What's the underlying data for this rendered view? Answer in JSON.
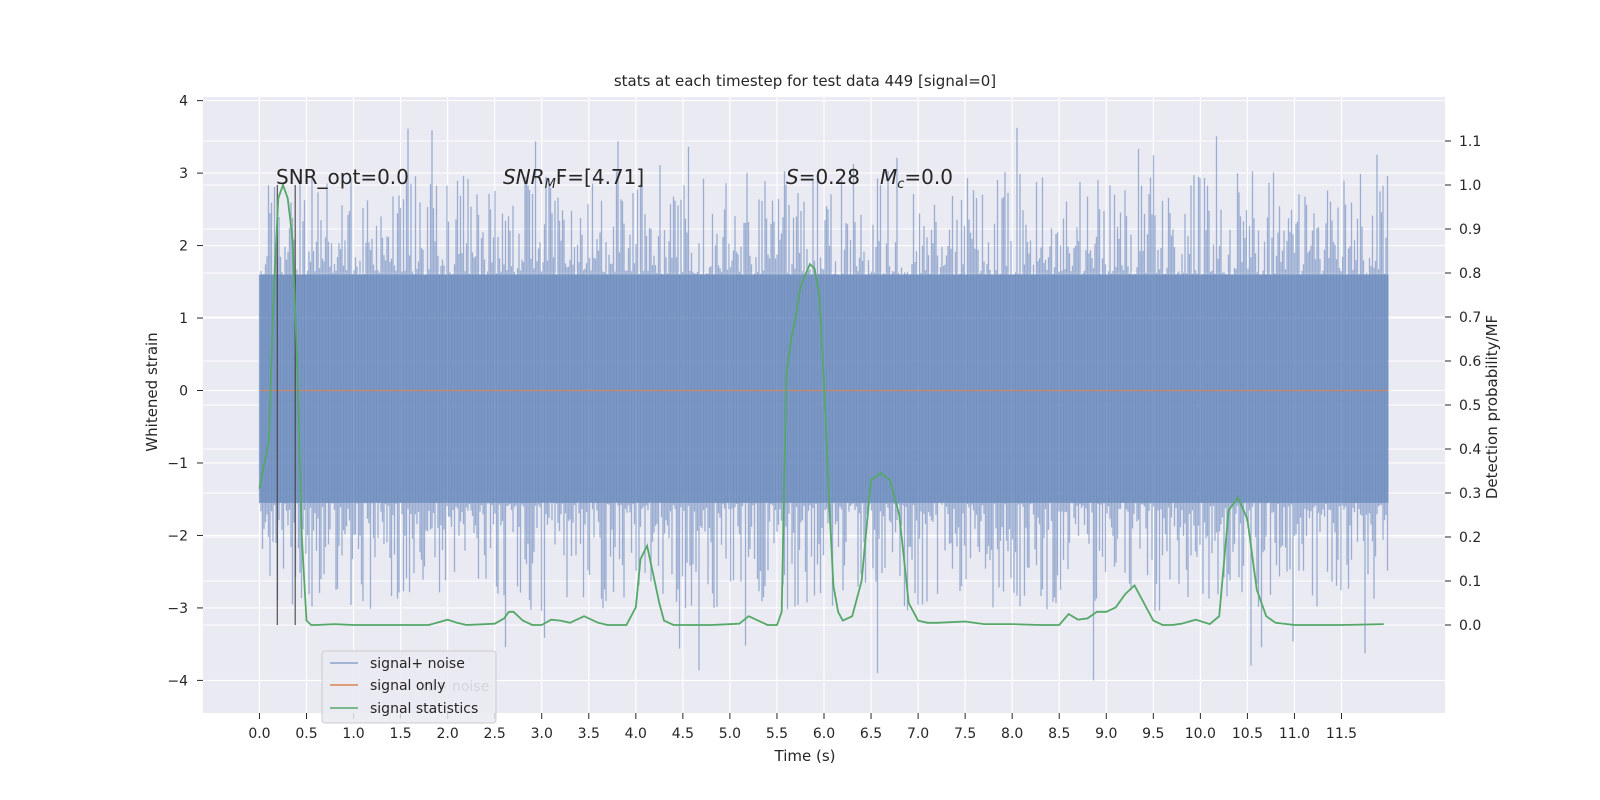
{
  "chart_data": {
    "type": "line",
    "title": "stats at each timestep for test data 449 [signal=0]",
    "xlabel": "Time (s)",
    "ylabel": "Whitened strain",
    "y2label": "Detection probability/MF",
    "xlim": [
      -0.6,
      12.6
    ],
    "ylim": [
      -4.45,
      4.05
    ],
    "y2lim": [
      -0.2,
      1.2
    ],
    "grid": true,
    "legend_position": "lower-left",
    "x_ticks": [
      "0.0",
      "0.5",
      "1.0",
      "1.5",
      "2.0",
      "2.5",
      "3.0",
      "3.5",
      "4.0",
      "4.5",
      "5.0",
      "5.5",
      "6.0",
      "6.5",
      "7.0",
      "7.5",
      "8.0",
      "8.5",
      "9.0",
      "9.5",
      "10.0",
      "10.5",
      "11.0",
      "11.5"
    ],
    "y_ticks": [
      "4",
      "3",
      "2",
      "1",
      "0",
      "−1",
      "−2",
      "−3",
      "−4"
    ],
    "y2_ticks": [
      "1.1",
      "1.0",
      "0.9",
      "0.8",
      "0.7",
      "0.6",
      "0.5",
      "0.4",
      "0.3",
      "0.2",
      "0.1",
      "0.0"
    ],
    "annotations": {
      "snr_opt": "SNR_opt=0.0",
      "snr_mf_base": "SNR",
      "snr_mf_sub": "M",
      "snr_mf_rest": "F=[4.71]",
      "s_stat": "S",
      "s_value": "=0.28",
      "mc_base": "M",
      "mc_sub": "c",
      "mc_value": "=0.0"
    },
    "vertical_markers_x": [
      0.19,
      0.38
    ],
    "legend": [
      "signal+ noise",
      "signal only",
      "signal statistics"
    ],
    "legend_ghost_text": "nl+ noise",
    "colors": {
      "signal_noise": "#4c72b0",
      "signal_only": "#dd8452",
      "signal_statistics": "#55a868",
      "markers": "#444444",
      "background": "#eaeaf2",
      "grid": "#ffffff"
    },
    "series": [
      {
        "name": "signal+ noise",
        "type": "band",
        "x_range": [
          0.0,
          12.0
        ],
        "core_band": [
          -1.55,
          1.6
        ],
        "extreme_range": [
          -4.05,
          3.7
        ]
      },
      {
        "name": "signal only",
        "x": [
          0.0,
          12.0
        ],
        "y": [
          0.0,
          0.0
        ]
      },
      {
        "name": "signal statistics",
        "axis": "right",
        "x": [
          0.0,
          0.1,
          0.15,
          0.2,
          0.25,
          0.3,
          0.35,
          0.4,
          0.45,
          0.5,
          0.55,
          0.6,
          0.8,
          1.0,
          1.5,
          1.8,
          2.0,
          2.1,
          2.2,
          2.5,
          2.6,
          2.65,
          2.7,
          2.8,
          2.9,
          3.0,
          3.1,
          3.2,
          3.3,
          3.45,
          3.6,
          3.7,
          3.9,
          4.0,
          4.05,
          4.12,
          4.17,
          4.25,
          4.3,
          4.4,
          4.5,
          4.8,
          5.1,
          5.2,
          5.3,
          5.4,
          5.5,
          5.55,
          5.6,
          5.65,
          5.7,
          5.75,
          5.85,
          5.9,
          5.95,
          6.0,
          6.05,
          6.1,
          6.15,
          6.2,
          6.3,
          6.4,
          6.5,
          6.6,
          6.7,
          6.8,
          6.9,
          7.0,
          7.1,
          7.2,
          7.5,
          7.7,
          8.0,
          8.3,
          8.5,
          8.6,
          8.7,
          8.8,
          8.9,
          9.0,
          9.1,
          9.2,
          9.3,
          9.4,
          9.5,
          9.6,
          9.7,
          9.8,
          9.95,
          10.1,
          10.2,
          10.3,
          10.4,
          10.5,
          10.6,
          10.7,
          10.8,
          11.0,
          11.5,
          11.95
        ],
        "y": [
          0.31,
          0.42,
          0.75,
          0.97,
          1.0,
          0.97,
          0.88,
          0.6,
          0.2,
          0.01,
          0.0,
          0.0,
          0.002,
          0.0,
          0.0,
          0.0,
          0.012,
          0.005,
          0.0,
          0.003,
          0.015,
          0.03,
          0.03,
          0.01,
          0.0,
          0.0,
          0.012,
          0.01,
          0.005,
          0.02,
          0.005,
          0.0,
          0.0,
          0.04,
          0.15,
          0.18,
          0.13,
          0.05,
          0.01,
          0.0,
          0.0,
          0.0,
          0.003,
          0.02,
          0.01,
          0.0,
          0.0,
          0.03,
          0.57,
          0.65,
          0.7,
          0.77,
          0.82,
          0.81,
          0.75,
          0.55,
          0.3,
          0.09,
          0.03,
          0.01,
          0.02,
          0.1,
          0.33,
          0.345,
          0.33,
          0.25,
          0.05,
          0.01,
          0.005,
          0.005,
          0.008,
          0.002,
          0.002,
          0.0,
          0.0,
          0.025,
          0.012,
          0.015,
          0.03,
          0.03,
          0.04,
          0.07,
          0.09,
          0.05,
          0.01,
          0.0,
          0.0,
          0.003,
          0.012,
          0.002,
          0.02,
          0.26,
          0.29,
          0.24,
          0.08,
          0.02,
          0.005,
          0.0,
          0.0,
          0.002
        ]
      }
    ]
  }
}
